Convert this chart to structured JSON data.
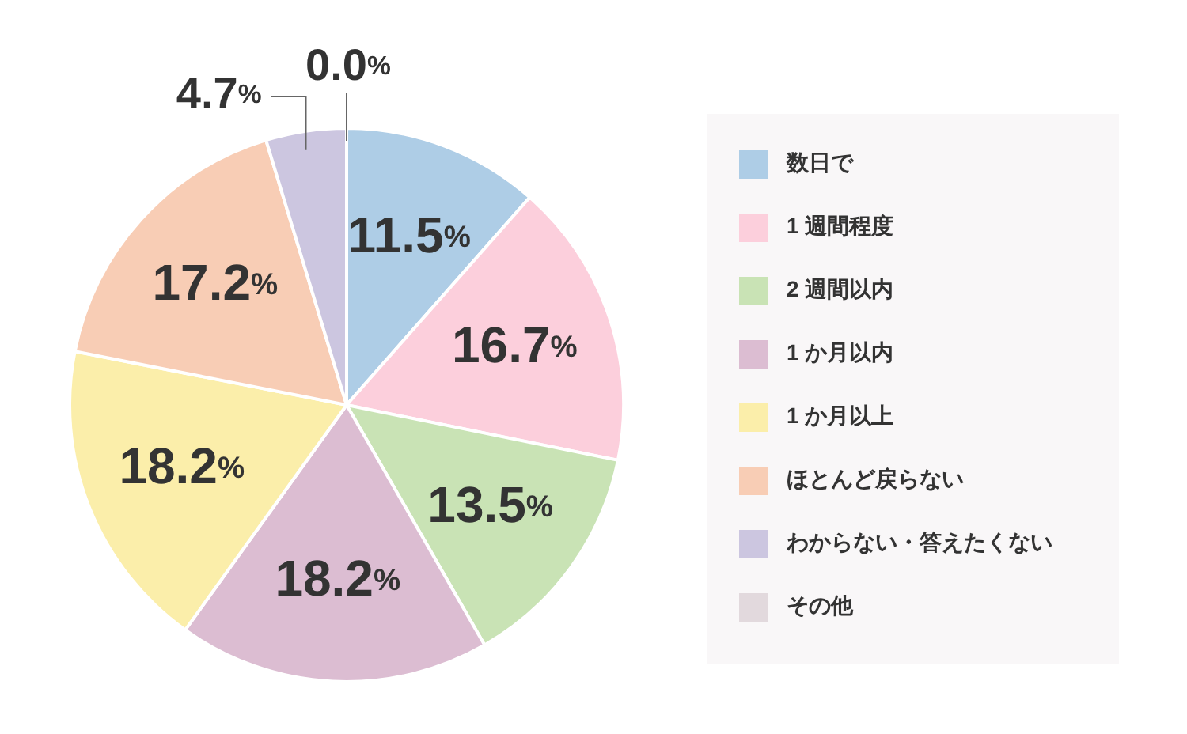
{
  "chart_data": {
    "type": "pie",
    "categories": [
      "数日で",
      "1 週間程度",
      "2 週間以内",
      "1 か月以内",
      "1 か月以上",
      "ほとんど戻らない",
      "わからない・答えたくない",
      "その他"
    ],
    "values": [
      11.5,
      16.7,
      13.5,
      18.2,
      18.2,
      17.2,
      4.7,
      0.0
    ],
    "colors": [
      "#aecde6",
      "#fccfdc",
      "#c9e3b5",
      "#dcbdd2",
      "#fbeeaa",
      "#f8cdb5",
      "#ccc6e0",
      "#e2d9dd"
    ],
    "value_labels": [
      "11.5%",
      "16.7%",
      "13.5%",
      "18.2%",
      "18.2%",
      "17.2%",
      "4.7%",
      "0.0%"
    ],
    "legend": "right"
  }
}
